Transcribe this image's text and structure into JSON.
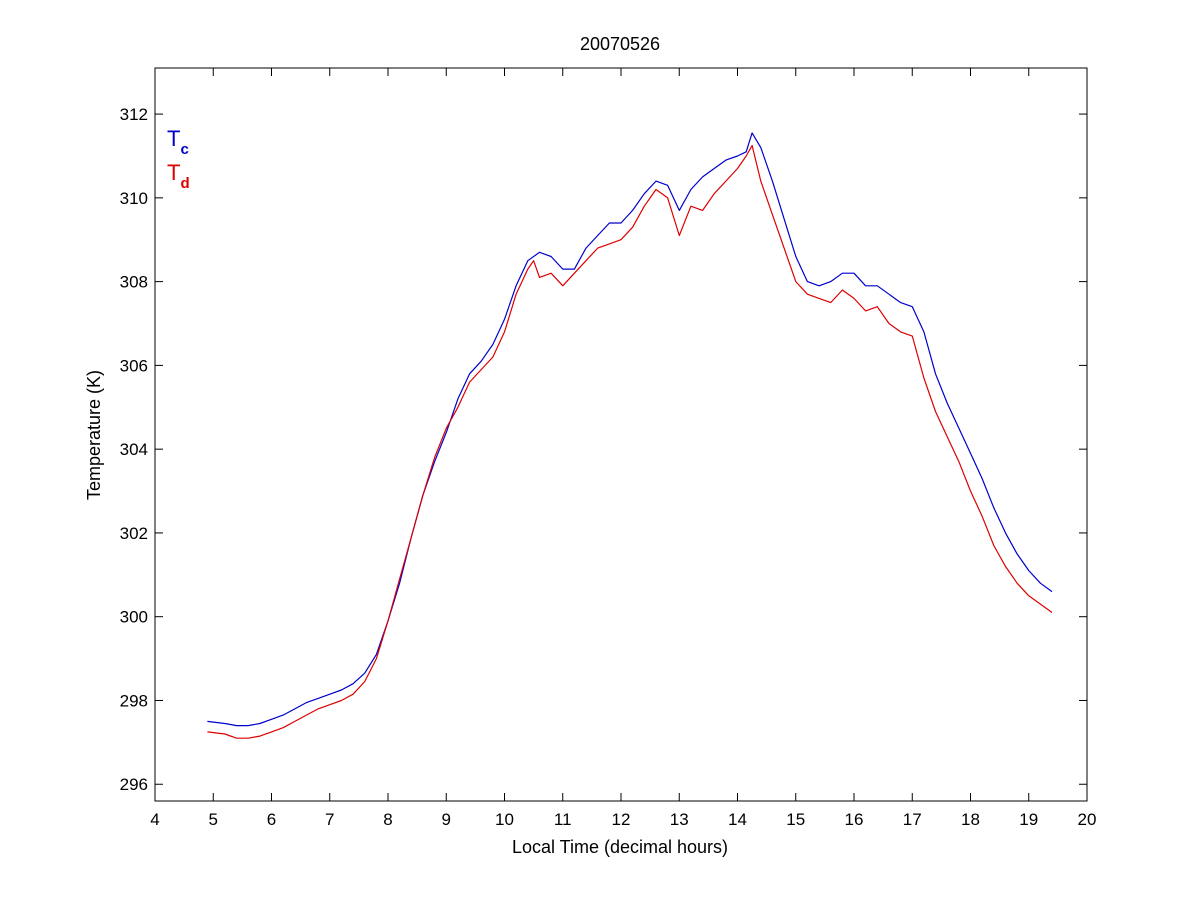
{
  "chart_data": {
    "type": "line",
    "title": "20070526",
    "xlabel": "Local Time (decimal hours)",
    "ylabel": "Temperature (K)",
    "xlim": [
      4,
      20
    ],
    "ylim": [
      295.6,
      313.1
    ],
    "xticks": [
      4,
      5,
      6,
      7,
      8,
      9,
      10,
      11,
      12,
      13,
      14,
      15,
      16,
      17,
      18,
      19,
      20
    ],
    "yticks": [
      296,
      298,
      300,
      302,
      304,
      306,
      308,
      310,
      312
    ],
    "grid": false,
    "legend": {
      "placement": "top-left",
      "entries": [
        {
          "main": "T",
          "sub": "c",
          "color": "#0000cc"
        },
        {
          "main": "T",
          "sub": "d",
          "color": "#dd0000"
        }
      ]
    },
    "series": [
      {
        "color": "#0000cc",
        "x": [
          4.9,
          5.2,
          5.4,
          5.6,
          5.8,
          6.0,
          6.2,
          6.4,
          6.6,
          6.8,
          7.0,
          7.2,
          7.4,
          7.6,
          7.8,
          8.0,
          8.2,
          8.4,
          8.6,
          8.8,
          9.0,
          9.2,
          9.4,
          9.6,
          9.8,
          10.0,
          10.2,
          10.4,
          10.6,
          10.8,
          11.0,
          11.2,
          11.4,
          11.6,
          11.8,
          12.0,
          12.2,
          12.4,
          12.6,
          12.8,
          13.0,
          13.2,
          13.4,
          13.6,
          13.8,
          14.0,
          14.15,
          14.25,
          14.4,
          14.6,
          14.8,
          15.0,
          15.2,
          15.4,
          15.6,
          15.8,
          16.0,
          16.2,
          16.4,
          16.6,
          16.8,
          17.0,
          17.2,
          17.4,
          17.6,
          17.8,
          18.0,
          18.2,
          18.4,
          18.6,
          18.8,
          19.0,
          19.2,
          19.4
        ],
        "y": [
          297.5,
          297.45,
          297.4,
          297.4,
          297.45,
          297.55,
          297.65,
          297.8,
          297.95,
          298.05,
          298.15,
          298.25,
          298.4,
          298.65,
          299.1,
          299.9,
          300.8,
          301.9,
          302.9,
          303.7,
          304.4,
          305.2,
          305.8,
          306.1,
          306.5,
          307.1,
          307.9,
          308.5,
          308.7,
          308.6,
          308.3,
          308.3,
          308.8,
          309.1,
          309.4,
          309.4,
          309.7,
          310.1,
          310.4,
          310.3,
          309.7,
          310.2,
          310.5,
          310.7,
          310.9,
          311.0,
          311.1,
          311.55,
          311.2,
          310.4,
          309.5,
          308.6,
          308.0,
          307.9,
          308.0,
          308.2,
          308.2,
          307.9,
          307.9,
          307.7,
          307.5,
          307.4,
          306.8,
          305.8,
          305.1,
          304.5,
          303.9,
          303.3,
          302.6,
          302.0,
          301.5,
          301.1,
          300.8,
          300.6
        ]
      },
      {
        "color": "#dd0000",
        "x": [
          4.9,
          5.2,
          5.4,
          5.6,
          5.8,
          6.0,
          6.2,
          6.4,
          6.6,
          6.8,
          7.0,
          7.2,
          7.4,
          7.6,
          7.8,
          8.0,
          8.2,
          8.4,
          8.6,
          8.8,
          9.0,
          9.2,
          9.4,
          9.6,
          9.8,
          10.0,
          10.2,
          10.4,
          10.5,
          10.6,
          10.8,
          11.0,
          11.2,
          11.4,
          11.6,
          11.8,
          12.0,
          12.2,
          12.4,
          12.6,
          12.8,
          13.0,
          13.2,
          13.4,
          13.6,
          13.8,
          14.0,
          14.15,
          14.25,
          14.4,
          14.6,
          14.8,
          15.0,
          15.2,
          15.4,
          15.6,
          15.8,
          16.0,
          16.2,
          16.4,
          16.6,
          16.8,
          17.0,
          17.2,
          17.4,
          17.6,
          17.8,
          18.0,
          18.2,
          18.4,
          18.6,
          18.8,
          19.0,
          19.2,
          19.4
        ],
        "y": [
          297.25,
          297.2,
          297.1,
          297.1,
          297.15,
          297.25,
          297.35,
          297.5,
          297.65,
          297.8,
          297.9,
          298.0,
          298.15,
          298.45,
          299.0,
          299.9,
          300.9,
          301.9,
          302.9,
          303.8,
          304.5,
          305.0,
          305.6,
          305.9,
          306.2,
          306.8,
          307.7,
          308.3,
          308.5,
          308.1,
          308.2,
          307.9,
          308.2,
          308.5,
          308.8,
          308.9,
          309.0,
          309.3,
          309.8,
          310.2,
          310.0,
          309.1,
          309.8,
          309.7,
          310.1,
          310.4,
          310.7,
          311.0,
          311.25,
          310.4,
          309.6,
          308.8,
          308.0,
          307.7,
          307.6,
          307.5,
          307.8,
          307.6,
          307.3,
          307.4,
          307.0,
          306.8,
          306.7,
          305.7,
          304.9,
          304.3,
          303.7,
          303.0,
          302.4,
          301.7,
          301.2,
          300.8,
          300.5,
          300.3,
          300.1
        ]
      }
    ]
  }
}
